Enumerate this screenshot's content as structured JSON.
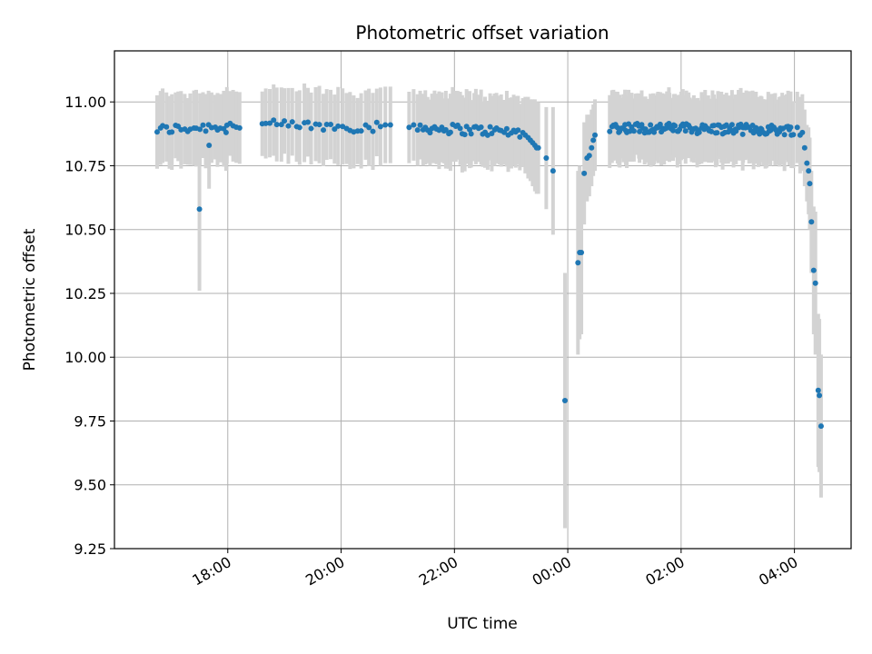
{
  "chart_data": {
    "type": "scatter",
    "title": "Photometric offset variation",
    "xlabel": "UTC time",
    "ylabel": "Photometric offset",
    "x_axis": {
      "unit": "hours after 00:00 UTC (negative = previous evening)",
      "range": [
        -8.0,
        5.0
      ],
      "ticks": [
        -6,
        -4,
        -2,
        0,
        2,
        4
      ],
      "tick_labels": [
        "18:00",
        "20:00",
        "22:00",
        "00:00",
        "02:00",
        "04:00"
      ]
    },
    "y_axis": {
      "range": [
        9.25,
        11.2
      ],
      "ticks": [
        9.25,
        9.5,
        9.75,
        10.0,
        10.25,
        10.5,
        10.75,
        11.0
      ],
      "tick_labels": [
        "9.25",
        "9.50",
        "9.75",
        "10.00",
        "10.25",
        "10.50",
        "10.75",
        "11.00"
      ]
    },
    "grid": true,
    "legend": "none",
    "colors": {
      "points": "#1f77b4",
      "error_bars": "#d3d3d3"
    },
    "segments": [
      {
        "x_start": -7.25,
        "x_end": -5.8,
        "y_start": 10.89,
        "y_end": 10.91,
        "err": 0.14,
        "count": 28,
        "amp": 0.02
      },
      {
        "x_start": -5.4,
        "x_end": -3.3,
        "y_start": 10.91,
        "y_end": 10.9,
        "err": 0.14,
        "count": 32,
        "amp": 0.02
      },
      {
        "x_start": -2.6,
        "x_end": -0.8,
        "y_start": 10.9,
        "y_end": 10.88,
        "err": 0.14,
        "count": 45,
        "amp": 0.02
      },
      {
        "x_start": 0.75,
        "x_end": 3.98,
        "y_start": 10.9,
        "y_end": 10.89,
        "err": 0.13,
        "count": 130,
        "amp": 0.02
      }
    ],
    "points": [
      {
        "x": -6.5,
        "y": 10.58,
        "err": 0.32
      },
      {
        "x": -6.33,
        "y": 10.83,
        "err": 0.17
      },
      {
        "x": -6.03,
        "y": 10.88,
        "err": 0.15
      },
      {
        "x": -3.22,
        "y": 10.91,
        "err": 0.15
      },
      {
        "x": -3.13,
        "y": 10.91,
        "err": 0.15
      },
      {
        "x": -2.8,
        "y": 10.9,
        "err": 0.14
      },
      {
        "x": -2.72,
        "y": 10.91,
        "err": 0.14
      },
      {
        "x": -2.65,
        "y": 10.89,
        "err": 0.14
      },
      {
        "x": -0.75,
        "y": 10.87,
        "err": 0.15
      },
      {
        "x": -0.7,
        "y": 10.86,
        "err": 0.16
      },
      {
        "x": -0.66,
        "y": 10.85,
        "err": 0.16
      },
      {
        "x": -0.62,
        "y": 10.84,
        "err": 0.17
      },
      {
        "x": -0.58,
        "y": 10.83,
        "err": 0.18
      },
      {
        "x": -0.55,
        "y": 10.82,
        "err": 0.18
      },
      {
        "x": -0.52,
        "y": 10.82,
        "err": 0.18
      },
      {
        "x": -0.38,
        "y": 10.78,
        "err": 0.2
      },
      {
        "x": -0.26,
        "y": 10.73,
        "err": 0.25
      },
      {
        "x": -0.05,
        "y": 9.83,
        "err": 0.5
      },
      {
        "x": 0.18,
        "y": 10.37,
        "err": 0.36
      },
      {
        "x": 0.21,
        "y": 10.41,
        "err": 0.34
      },
      {
        "x": 0.24,
        "y": 10.41,
        "err": 0.32
      },
      {
        "x": 0.29,
        "y": 10.72,
        "err": 0.2
      },
      {
        "x": 0.34,
        "y": 10.78,
        "err": 0.17
      },
      {
        "x": 0.38,
        "y": 10.79,
        "err": 0.16
      },
      {
        "x": 0.42,
        "y": 10.82,
        "err": 0.15
      },
      {
        "x": 0.45,
        "y": 10.85,
        "err": 0.14
      },
      {
        "x": 0.48,
        "y": 10.87,
        "err": 0.14
      },
      {
        "x": 4.05,
        "y": 10.9,
        "err": 0.14
      },
      {
        "x": 4.1,
        "y": 10.87,
        "err": 0.15
      },
      {
        "x": 4.14,
        "y": 10.88,
        "err": 0.15
      },
      {
        "x": 4.18,
        "y": 10.82,
        "err": 0.15
      },
      {
        "x": 4.22,
        "y": 10.76,
        "err": 0.15
      },
      {
        "x": 4.25,
        "y": 10.73,
        "err": 0.17
      },
      {
        "x": 4.27,
        "y": 10.68,
        "err": 0.18
      },
      {
        "x": 4.3,
        "y": 10.53,
        "err": 0.2
      },
      {
        "x": 4.34,
        "y": 10.34,
        "err": 0.25
      },
      {
        "x": 4.37,
        "y": 10.29,
        "err": 0.28
      },
      {
        "x": 4.42,
        "y": 9.87,
        "err": 0.3
      },
      {
        "x": 4.44,
        "y": 9.85,
        "err": 0.3
      },
      {
        "x": 4.47,
        "y": 9.73,
        "err": 0.28
      }
    ]
  }
}
